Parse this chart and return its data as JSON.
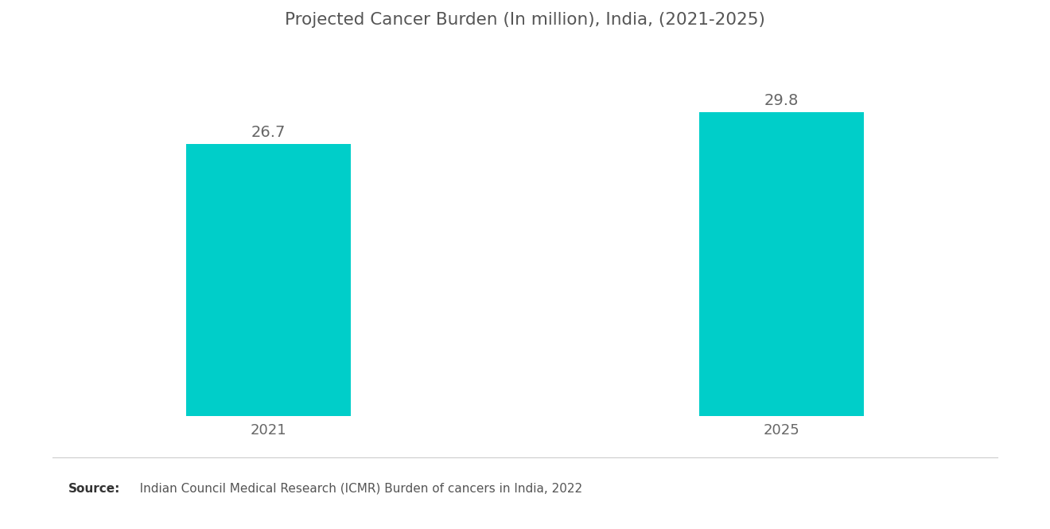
{
  "title": "Projected Cancer Burden (In million), India, (2021-2025)",
  "categories": [
    "2021",
    "2025"
  ],
  "values": [
    26.7,
    29.8
  ],
  "bar_color": "#00CEC9",
  "label_color": "#666666",
  "title_color": "#555555",
  "background_color": "#ffffff",
  "bar_width": 0.32,
  "x_positions": [
    1,
    2
  ],
  "xlim": [
    0.5,
    2.5
  ],
  "ylim": [
    0,
    36
  ],
  "source_bold": "Source:",
  "source_text": "   Indian Council Medical Research (ICMR) Burden of cancers in India, 2022",
  "title_fontsize": 15.5,
  "label_fontsize": 14,
  "tick_fontsize": 13,
  "source_fontsize": 11
}
